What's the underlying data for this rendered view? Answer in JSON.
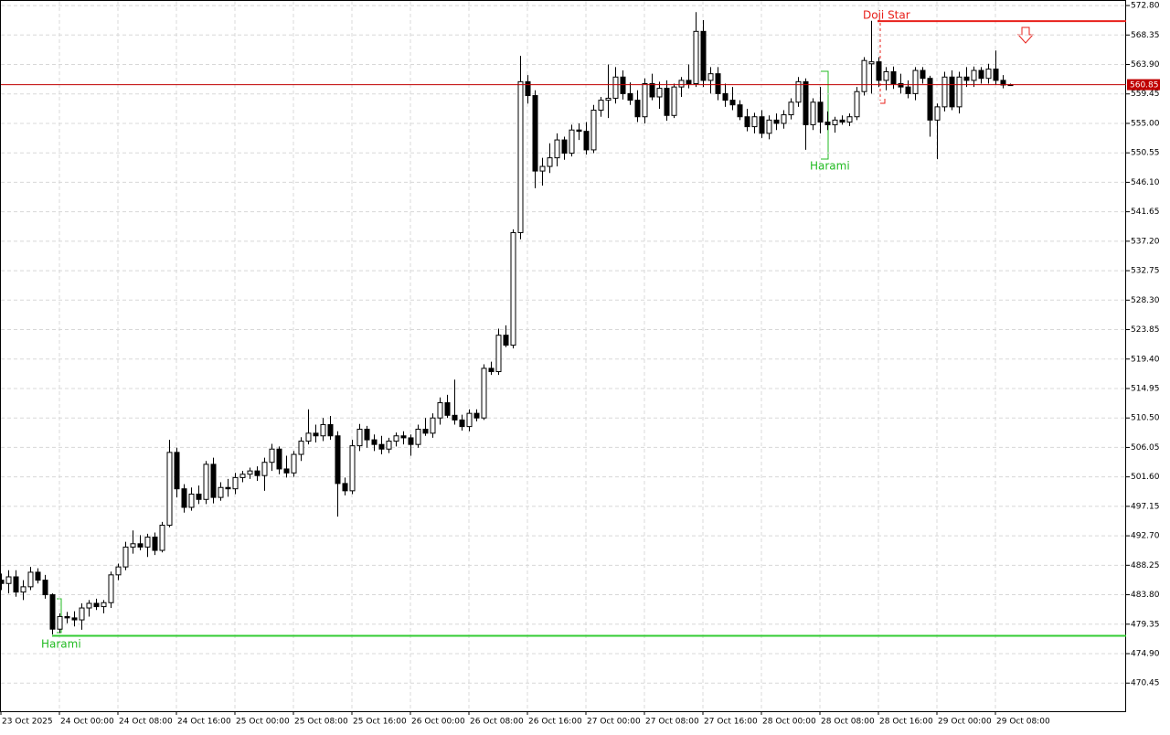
{
  "chart_data": {
    "type": "candlestick",
    "categories": [
      "23 Oct 2025",
      null,
      null,
      null,
      null,
      null,
      null,
      null,
      "24 Oct 00:00",
      null,
      null,
      null,
      null,
      null,
      null,
      null,
      "24 Oct 08:00",
      null,
      null,
      null,
      null,
      null,
      null,
      null,
      "24 Oct 16:00",
      null,
      null,
      null,
      null,
      null,
      null,
      null,
      "25 Oct 00:00",
      null,
      null,
      null,
      null,
      null,
      null,
      null,
      "25 Oct 08:00",
      null,
      null,
      null,
      null,
      null,
      null,
      null,
      "25 Oct 16:00",
      null,
      null,
      null,
      null,
      null,
      null,
      null,
      "26 Oct 00:00",
      null,
      null,
      null,
      null,
      null,
      null,
      null,
      "26 Oct 08:00",
      null,
      null,
      null,
      null,
      null,
      null,
      null,
      "26 Oct 16:00",
      null,
      null,
      null,
      null,
      null,
      null,
      null,
      "27 Oct 00:00",
      null,
      null,
      null,
      null,
      null,
      null,
      null,
      "27 Oct 08:00",
      null,
      null,
      null,
      null,
      null,
      null,
      null,
      "27 Oct 16:00",
      null,
      null,
      null,
      null,
      null,
      null,
      null,
      "28 Oct 00:00",
      null,
      null,
      null,
      null,
      null,
      null,
      null,
      "28 Oct 08:00",
      null,
      null,
      null,
      null,
      null,
      null,
      null,
      "28 Oct 16:00",
      null,
      null,
      null,
      null,
      null,
      null,
      null,
      "29 Oct 00:00",
      null,
      null,
      null,
      null,
      null,
      null,
      null,
      "29 Oct 08:00",
      null,
      null
    ],
    "ohlc": [
      [
        486.0,
        487.0,
        484.5,
        485.5
      ],
      [
        485.5,
        487.5,
        484.0,
        486.5
      ],
      [
        486.5,
        487.5,
        483.5,
        484.2
      ],
      [
        484.2,
        486.0,
        483.0,
        485.0
      ],
      [
        485.0,
        488.0,
        484.5,
        487.2
      ],
      [
        487.2,
        487.8,
        485.5,
        486.0
      ],
      [
        486.0,
        486.8,
        483.2,
        483.8
      ],
      [
        483.8,
        484.0,
        477.8,
        478.6
      ],
      [
        478.6,
        481.0,
        478.0,
        480.5
      ],
      [
        480.5,
        481.2,
        479.5,
        480.3
      ],
      [
        480.3,
        481.3,
        479.0,
        480.0
      ],
      [
        480.0,
        482.5,
        478.5,
        481.8
      ],
      [
        481.8,
        483.0,
        480.5,
        482.5
      ],
      [
        482.5,
        483.2,
        481.5,
        482.0
      ],
      [
        482.0,
        483.0,
        481.0,
        482.6
      ],
      [
        482.6,
        487.3,
        481.8,
        486.8
      ],
      [
        486.8,
        488.5,
        486.0,
        488.0
      ],
      [
        488.0,
        491.8,
        487.5,
        491.0
      ],
      [
        491.0,
        493.5,
        490.0,
        491.5
      ],
      [
        491.5,
        492.8,
        490.5,
        491.0
      ],
      [
        491.0,
        493.0,
        489.5,
        492.5
      ],
      [
        492.5,
        493.2,
        489.8,
        490.5
      ],
      [
        490.5,
        494.8,
        490.2,
        494.3
      ],
      [
        494.3,
        507.2,
        494.0,
        505.3
      ],
      [
        505.3,
        506.0,
        498.5,
        499.8
      ],
      [
        499.8,
        500.5,
        496.2,
        497.0
      ],
      [
        497.0,
        500.0,
        496.5,
        499.0
      ],
      [
        499.0,
        500.3,
        497.5,
        498.2
      ],
      [
        498.2,
        504.0,
        497.5,
        503.5
      ],
      [
        503.5,
        504.5,
        497.6,
        498.5
      ],
      [
        498.5,
        500.8,
        498.0,
        500.0
      ],
      [
        500.0,
        501.3,
        498.6,
        499.8
      ],
      [
        499.8,
        502.2,
        499.0,
        501.5
      ],
      [
        501.5,
        502.5,
        500.8,
        502.0
      ],
      [
        502.0,
        503.0,
        501.3,
        502.5
      ],
      [
        502.5,
        503.2,
        501.0,
        501.8
      ],
      [
        501.8,
        504.5,
        499.5,
        503.8
      ],
      [
        503.8,
        506.6,
        502.5,
        505.8
      ],
      [
        505.8,
        506.2,
        502.0,
        502.8
      ],
      [
        502.8,
        504.8,
        501.5,
        502.2
      ],
      [
        502.2,
        505.5,
        501.6,
        505.0
      ],
      [
        505.0,
        507.6,
        504.0,
        507.0
      ],
      [
        507.0,
        511.8,
        506.5,
        508.2
      ],
      [
        508.2,
        509.5,
        506.8,
        507.8
      ],
      [
        507.8,
        510.5,
        507.0,
        509.5
      ],
      [
        509.5,
        510.8,
        507.2,
        507.8
      ],
      [
        507.8,
        508.5,
        495.6,
        500.6
      ],
      [
        500.6,
        501.5,
        498.8,
        499.5
      ],
      [
        499.5,
        507.2,
        499.0,
        506.3
      ],
      [
        506.3,
        509.6,
        505.5,
        508.8
      ],
      [
        508.8,
        509.3,
        506.0,
        507.2
      ],
      [
        507.2,
        508.0,
        505.5,
        506.5
      ],
      [
        506.5,
        507.8,
        505.0,
        505.8
      ],
      [
        505.8,
        507.5,
        505.2,
        507.0
      ],
      [
        507.0,
        508.3,
        506.2,
        507.8
      ],
      [
        507.8,
        508.5,
        506.5,
        507.5
      ],
      [
        507.5,
        508.0,
        504.8,
        506.5
      ],
      [
        506.5,
        509.5,
        506.0,
        508.8
      ],
      [
        508.8,
        510.5,
        507.8,
        508.2
      ],
      [
        508.2,
        511.2,
        507.5,
        510.5
      ],
      [
        510.5,
        513.6,
        509.5,
        512.8
      ],
      [
        512.8,
        514.0,
        510.5,
        510.9
      ],
      [
        510.9,
        516.3,
        509.5,
        510.2
      ],
      [
        510.2,
        511.0,
        508.6,
        509.2
      ],
      [
        509.2,
        511.8,
        508.5,
        511.2
      ],
      [
        511.2,
        511.8,
        510.0,
        510.5
      ],
      [
        510.5,
        518.6,
        510.2,
        518.0
      ],
      [
        518.0,
        519.0,
        517.0,
        517.5
      ],
      [
        517.5,
        524.0,
        517.0,
        523.0
      ],
      [
        523.0,
        524.5,
        521.2,
        521.5
      ],
      [
        521.5,
        539.0,
        521.0,
        538.5
      ],
      [
        538.5,
        565.2,
        537.5,
        561.3
      ],
      [
        561.3,
        562.3,
        558.0,
        559.2
      ],
      [
        559.2,
        560.0,
        545.2,
        547.8
      ],
      [
        547.8,
        549.8,
        545.6,
        548.5
      ],
      [
        548.5,
        552.0,
        547.5,
        549.8
      ],
      [
        549.8,
        553.5,
        548.5,
        552.5
      ],
      [
        552.5,
        553.0,
        549.5,
        550.5
      ],
      [
        550.5,
        554.8,
        550.0,
        554.0
      ],
      [
        554.0,
        555.0,
        552.5,
        553.8
      ],
      [
        553.8,
        555.2,
        550.3,
        551.0
      ],
      [
        551.0,
        557.8,
        550.5,
        557.0
      ],
      [
        557.0,
        559.0,
        556.0,
        558.5
      ],
      [
        558.5,
        563.9,
        555.8,
        558.8
      ],
      [
        558.8,
        563.5,
        558.0,
        562.0
      ],
      [
        562.0,
        563.0,
        558.6,
        559.5
      ],
      [
        559.5,
        561.2,
        557.8,
        558.5
      ],
      [
        558.5,
        560.0,
        555.2,
        556.0
      ],
      [
        556.0,
        561.8,
        555.0,
        561.0
      ],
      [
        561.0,
        562.5,
        558.5,
        559.0
      ],
      [
        559.0,
        561.3,
        557.2,
        560.3
      ],
      [
        560.3,
        561.5,
        555.4,
        556.2
      ],
      [
        556.2,
        561.0,
        555.8,
        560.5
      ],
      [
        560.5,
        562.0,
        559.0,
        561.5
      ],
      [
        561.5,
        563.9,
        560.3,
        561.0
      ],
      [
        561.0,
        571.8,
        560.5,
        568.9
      ],
      [
        568.9,
        570.6,
        560.5,
        561.5
      ],
      [
        561.5,
        563.5,
        559.5,
        562.5
      ],
      [
        562.5,
        563.5,
        558.5,
        559.5
      ],
      [
        559.5,
        561.0,
        557.5,
        558.5
      ],
      [
        558.5,
        560.5,
        557.0,
        557.8
      ],
      [
        557.8,
        558.5,
        555.5,
        556.0
      ],
      [
        556.0,
        557.2,
        553.8,
        554.5
      ],
      [
        554.5,
        556.6,
        553.5,
        556.0
      ],
      [
        556.0,
        557.0,
        552.8,
        553.5
      ],
      [
        553.5,
        556.2,
        552.6,
        555.5
      ],
      [
        555.5,
        556.5,
        554.0,
        555.0
      ],
      [
        555.0,
        557.0,
        554.2,
        556.3
      ],
      [
        556.3,
        558.8,
        555.6,
        558.2
      ],
      [
        558.2,
        562.0,
        557.5,
        561.3
      ],
      [
        561.3,
        561.8,
        551.0,
        554.8
      ],
      [
        554.8,
        558.8,
        554.0,
        558.2
      ],
      [
        558.2,
        560.5,
        553.5,
        555.2
      ],
      [
        555.2,
        556.8,
        554.0,
        554.8
      ],
      [
        554.8,
        556.0,
        553.6,
        555.5
      ],
      [
        555.5,
        556.2,
        554.8,
        555.2
      ],
      [
        555.2,
        556.5,
        554.6,
        556.0
      ],
      [
        556.0,
        560.5,
        555.5,
        559.8
      ],
      [
        559.8,
        565.0,
        559.2,
        564.5
      ],
      [
        564.0,
        570.5,
        559.5,
        564.3
      ],
      [
        564.3,
        565.0,
        560.5,
        561.5
      ],
      [
        561.5,
        563.5,
        560.0,
        562.8
      ],
      [
        562.8,
        563.6,
        560.2,
        561.0
      ],
      [
        561.0,
        562.5,
        559.5,
        560.5
      ],
      [
        560.5,
        561.5,
        558.8,
        559.5
      ],
      [
        559.5,
        563.5,
        558.5,
        563.0
      ],
      [
        563.0,
        563.5,
        561.0,
        561.8
      ],
      [
        561.8,
        562.2,
        553.0,
        555.5
      ],
      [
        555.5,
        558.0,
        549.6,
        557.5
      ],
      [
        557.5,
        562.8,
        556.8,
        562.0
      ],
      [
        562.0,
        563.0,
        557.0,
        557.5
      ],
      [
        557.5,
        562.8,
        556.5,
        562.0
      ],
      [
        562.0,
        563.5,
        560.5,
        561.5
      ],
      [
        561.5,
        563.6,
        560.5,
        563.0
      ],
      [
        563.0,
        563.5,
        561.0,
        561.8
      ],
      [
        561.8,
        564.0,
        561.0,
        563.2
      ],
      [
        563.2,
        566.0,
        560.8,
        561.5
      ],
      [
        561.5,
        562.3,
        560.3,
        560.8
      ],
      [
        560.8,
        561.0,
        560.7,
        560.85
      ]
    ],
    "ylim": [
      466.2,
      573.5
    ],
    "yticks": [
      {
        "value": 572.8,
        "label": "572.80"
      },
      {
        "value": 568.35,
        "label": "568.35"
      },
      {
        "value": 563.9,
        "label": "563.90"
      },
      {
        "value": 559.45,
        "label": "559.45"
      },
      {
        "value": 555,
        "label": "555.00"
      },
      {
        "value": 550.55,
        "label": "550.55"
      },
      {
        "value": 546.1,
        "label": "546.10"
      },
      {
        "value": 541.65,
        "label": "541.65"
      },
      {
        "value": 537.2,
        "label": "537.20"
      },
      {
        "value": 532.75,
        "label": "532.75"
      },
      {
        "value": 528.3,
        "label": "528.30"
      },
      {
        "value": 523.85,
        "label": "523.85"
      },
      {
        "value": 519.4,
        "label": "519.40"
      },
      {
        "value": 514.95,
        "label": "514.95"
      },
      {
        "value": 510.5,
        "label": "510.50"
      },
      {
        "value": 506.05,
        "label": "506.05"
      },
      {
        "value": 501.6,
        "label": "501.60"
      },
      {
        "value": 497.15,
        "label": "497.15"
      },
      {
        "value": 492.7,
        "label": "492.70"
      },
      {
        "value": 488.25,
        "label": "488.25"
      },
      {
        "value": 483.8,
        "label": "483.80"
      },
      {
        "value": 479.35,
        "label": "479.35"
      },
      {
        "value": 474.9,
        "label": "474.90"
      },
      {
        "value": 470.45,
        "label": "470.45"
      }
    ],
    "grid": true,
    "up_color": "#ffffff",
    "down_color": "#000000",
    "current_price": {
      "value": 560.85,
      "label": "560.85",
      "color": "#c00000"
    },
    "levels": [
      {
        "value": 477.6,
        "color": "#33cc33"
      },
      {
        "value": 570.45,
        "color": "#e8201b"
      }
    ],
    "annotations": [
      {
        "text": "Harami",
        "color": "#22bb22"
      },
      {
        "text": "Harami",
        "color": "#22bb22"
      },
      {
        "text": "Doji Star",
        "color": "#e8201b"
      }
    ]
  }
}
